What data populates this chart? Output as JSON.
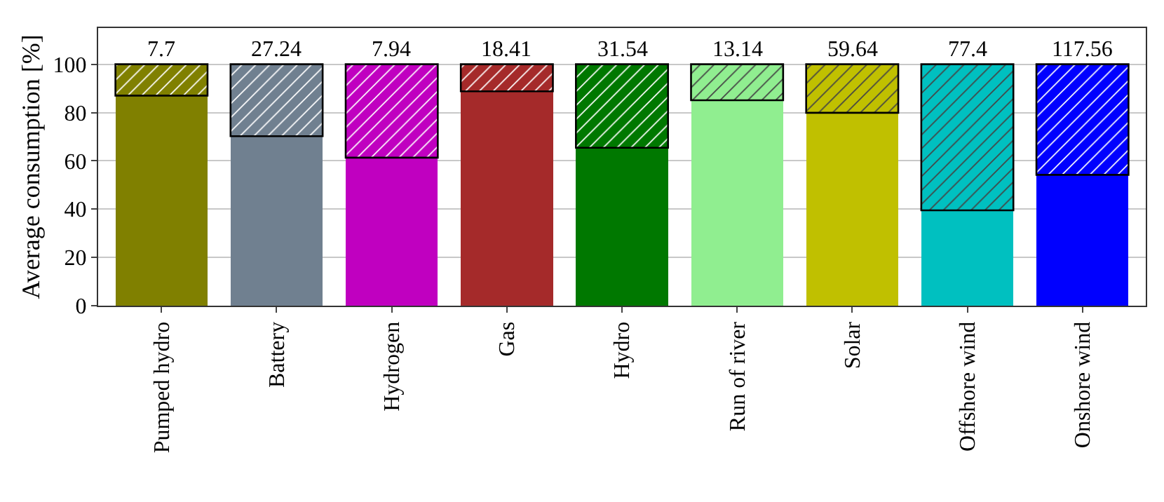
{
  "chart_data": {
    "type": "bar",
    "stacked": true,
    "ylabel": "Average consumption [%]",
    "categories": [
      "Pumped hydro",
      "Battery",
      "Hydrogen",
      "Gas",
      "Hydro",
      "Run of river",
      "Solar",
      "Offshore wind",
      "Onshore wind"
    ],
    "series": [
      {
        "colors": [
          "#808000",
          "#708090",
          "#c000c0",
          "#a52a2a",
          "#007800",
          "#90ee90",
          "#c0c000",
          "#00c0c0",
          "#0000ff"
        ],
        "values": [
          87.0,
          70.2,
          61.3,
          88.8,
          65.4,
          85.1,
          79.9,
          39.5,
          54.2
        ]
      },
      {
        "colors": [
          "#808000",
          "#708090",
          "#c000c0",
          "#a52a2a",
          "#007800",
          "#90ee90",
          "#c0c000",
          "#00c0c0",
          "#0000ff"
        ],
        "values": [
          13.0,
          29.8,
          38.7,
          11.2,
          34.6,
          14.9,
          20.1,
          60.5,
          45.8
        ]
      }
    ],
    "annotations": [
      {
        "text": "7.7",
        "x": "Pumped hydro",
        "y": 100
      },
      {
        "text": "27.24",
        "x": "Battery",
        "y": 100
      },
      {
        "text": "7.94",
        "x": "Hydrogen",
        "y": 100
      },
      {
        "text": "18.41",
        "x": "Gas",
        "y": 100
      },
      {
        "text": "31.54",
        "x": "Hydro",
        "y": 100
      },
      {
        "text": "13.14",
        "x": "Run of river",
        "y": 100
      },
      {
        "text": "59.64",
        "x": "Solar",
        "y": 100
      },
      {
        "text": "77.4",
        "x": "Offshore wind",
        "y": 100
      },
      {
        "text": "117.56",
        "x": "Onshore wind",
        "y": 100
      }
    ],
    "ylim": [
      0,
      115
    ],
    "yticks": [
      0,
      20,
      40,
      60,
      80,
      100
    ],
    "grid": "y"
  }
}
